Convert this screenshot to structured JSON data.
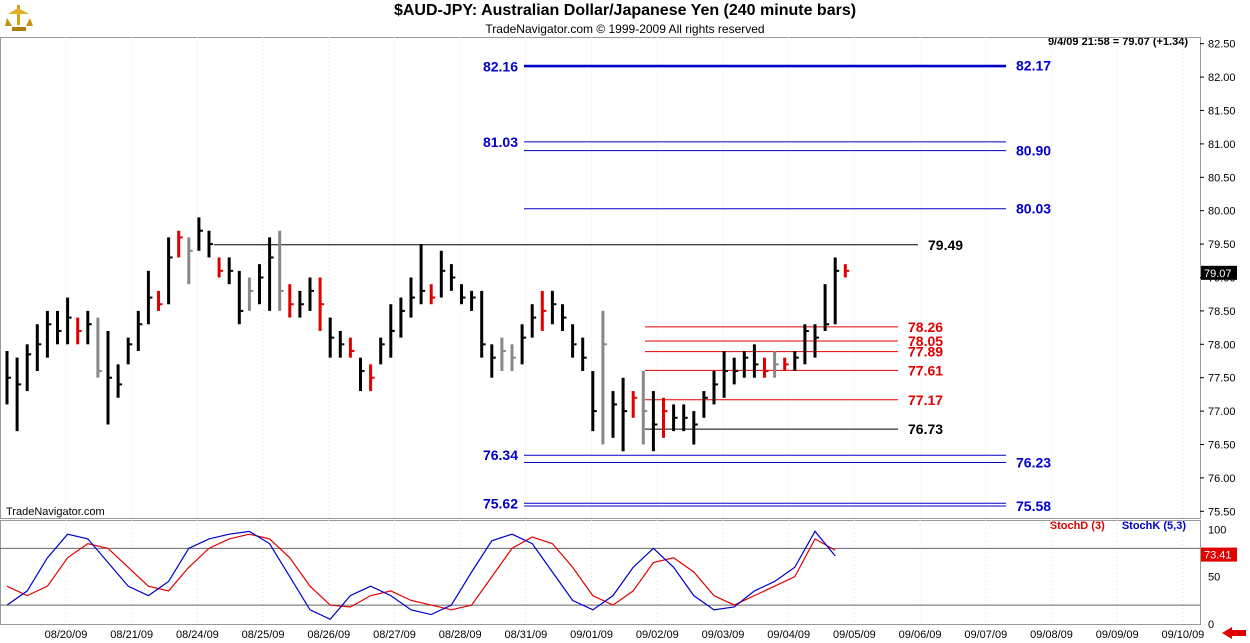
{
  "header": {
    "title": "$AUD-JPY:  Australian Dollar/Japanese Yen  (240 minute bars)",
    "subtitle": "TradeNavigator.com © 1999-2009 All rights reserved"
  },
  "readout": "9/4/09 21:58 = 79.07 (+1.34)",
  "watermark": "TradeNavigator.com",
  "colors": {
    "bull_bar": "#000000",
    "up_bar": "#888888",
    "down_bar": "#e00000",
    "level_blue": "#0000cc",
    "level_red": "#e00000",
    "stochD": "#e00000",
    "stochK": "#0000cc"
  },
  "chart_data": [
    {
      "type": "bar",
      "subtype": "ohlc",
      "title": "$AUD-JPY:  Australian Dollar/Japanese Yen  (240 minute bars)",
      "ylim": [
        75.4,
        82.6
      ],
      "yticks": [
        "75.50",
        "76.00",
        "76.50",
        "77.00",
        "77.50",
        "78.00",
        "78.50",
        "79.00",
        "79.50",
        "80.00",
        "80.50",
        "81.00",
        "81.50",
        "82.00",
        "82.50"
      ],
      "x_labels": [
        "08/20/09",
        "08/21/09",
        "08/24/09",
        "08/25/09",
        "08/26/09",
        "08/27/09",
        "08/28/09",
        "08/31/09",
        "09/01/09",
        "09/02/09",
        "09/03/09",
        "09/04/09",
        "09/05/09",
        "09/06/09",
        "09/07/09",
        "09/08/09",
        "09/09/09",
        "09/10/09"
      ],
      "last_price": "79.07",
      "bars": [
        [
          77.9,
          77.1,
          77.5,
          "k"
        ],
        [
          77.8,
          76.7,
          77.4,
          "k"
        ],
        [
          78.0,
          77.3,
          77.85,
          "k"
        ],
        [
          78.3,
          77.6,
          78.0,
          "k"
        ],
        [
          78.5,
          77.8,
          78.3,
          "k"
        ],
        [
          78.5,
          78.0,
          78.2,
          "k"
        ],
        [
          78.7,
          78.0,
          78.4,
          "k"
        ],
        [
          78.4,
          78.0,
          78.2,
          "r"
        ],
        [
          78.5,
          78.0,
          78.3,
          "k"
        ],
        [
          78.4,
          77.5,
          77.6,
          "g"
        ],
        [
          78.2,
          76.8,
          77.5,
          "k"
        ],
        [
          77.7,
          77.2,
          77.4,
          "k"
        ],
        [
          78.1,
          77.7,
          78.0,
          "k"
        ],
        [
          78.5,
          77.9,
          78.3,
          "k"
        ],
        [
          79.1,
          78.3,
          78.7,
          "k"
        ],
        [
          78.8,
          78.5,
          78.6,
          "r"
        ],
        [
          79.6,
          78.6,
          79.3,
          "k"
        ],
        [
          79.7,
          79.3,
          79.6,
          "r"
        ],
        [
          79.6,
          78.9,
          79.4,
          "g"
        ],
        [
          79.9,
          79.4,
          79.7,
          "k"
        ],
        [
          79.7,
          79.3,
          79.5,
          "k"
        ],
        [
          79.3,
          79.0,
          79.1,
          "r"
        ],
        [
          79.3,
          78.9,
          79.1,
          "k"
        ],
        [
          79.1,
          78.3,
          78.5,
          "k"
        ],
        [
          79.0,
          78.5,
          78.8,
          "g"
        ],
        [
          79.2,
          78.6,
          79.0,
          "k"
        ],
        [
          79.6,
          78.5,
          79.3,
          "k"
        ],
        [
          79.7,
          78.5,
          78.8,
          "g"
        ],
        [
          78.9,
          78.4,
          78.6,
          "r"
        ],
        [
          78.8,
          78.4,
          78.6,
          "k"
        ],
        [
          79.0,
          78.5,
          78.8,
          "k"
        ],
        [
          79.0,
          78.2,
          78.6,
          "r"
        ],
        [
          78.4,
          77.8,
          78.1,
          "k"
        ],
        [
          78.2,
          77.8,
          78.0,
          "k"
        ],
        [
          78.1,
          77.8,
          77.9,
          "r"
        ],
        [
          77.8,
          77.3,
          77.6,
          "k"
        ],
        [
          77.7,
          77.3,
          77.5,
          "r"
        ],
        [
          78.1,
          77.7,
          78.0,
          "k"
        ],
        [
          78.6,
          77.8,
          78.2,
          "k"
        ],
        [
          78.7,
          78.1,
          78.5,
          "k"
        ],
        [
          79.0,
          78.4,
          78.7,
          "k"
        ],
        [
          79.5,
          78.6,
          78.8,
          "k"
        ],
        [
          78.9,
          78.6,
          78.7,
          "r"
        ],
        [
          79.4,
          78.7,
          79.1,
          "k"
        ],
        [
          79.2,
          78.8,
          79.0,
          "k"
        ],
        [
          78.9,
          78.6,
          78.7,
          "k"
        ],
        [
          78.8,
          78.5,
          78.7,
          "k"
        ],
        [
          78.8,
          77.8,
          78.0,
          "k"
        ],
        [
          78.0,
          77.5,
          77.8,
          "k"
        ],
        [
          78.1,
          77.6,
          77.9,
          "g"
        ],
        [
          78.0,
          77.6,
          77.8,
          "g"
        ],
        [
          78.3,
          77.7,
          78.1,
          "k"
        ],
        [
          78.6,
          78.1,
          78.4,
          "k"
        ],
        [
          78.8,
          78.2,
          78.5,
          "r"
        ],
        [
          78.8,
          78.3,
          78.6,
          "k"
        ],
        [
          78.6,
          78.2,
          78.4,
          "k"
        ],
        [
          78.3,
          77.8,
          78.0,
          "k"
        ],
        [
          78.1,
          77.6,
          77.8,
          "k"
        ],
        [
          77.6,
          76.7,
          77.0,
          "k"
        ],
        [
          78.5,
          76.5,
          78.0,
          "g"
        ],
        [
          77.3,
          76.6,
          77.1,
          "k"
        ],
        [
          77.5,
          76.4,
          77.0,
          "k"
        ],
        [
          77.3,
          76.9,
          77.2,
          "r"
        ],
        [
          77.6,
          76.5,
          77.0,
          "g"
        ],
        [
          77.3,
          76.4,
          76.8,
          "k"
        ],
        [
          77.2,
          76.6,
          77.0,
          "r"
        ],
        [
          77.1,
          76.7,
          76.9,
          "k"
        ],
        [
          77.1,
          76.7,
          76.9,
          "k"
        ],
        [
          77.0,
          76.5,
          76.8,
          "k"
        ],
        [
          77.3,
          76.9,
          77.2,
          "k"
        ],
        [
          77.6,
          77.1,
          77.4,
          "k"
        ],
        [
          77.9,
          77.2,
          77.6,
          "k"
        ],
        [
          77.8,
          77.4,
          77.6,
          "k"
        ],
        [
          77.9,
          77.5,
          77.8,
          "k"
        ],
        [
          78.0,
          77.5,
          77.7,
          "k"
        ],
        [
          77.8,
          77.5,
          77.6,
          "r"
        ],
        [
          77.9,
          77.5,
          77.7,
          "g"
        ],
        [
          77.8,
          77.6,
          77.7,
          "r"
        ],
        [
          77.9,
          77.6,
          77.8,
          "k"
        ],
        [
          78.3,
          77.7,
          78.2,
          "k"
        ],
        [
          78.3,
          77.8,
          78.1,
          "k"
        ],
        [
          78.9,
          78.2,
          78.3,
          "k"
        ],
        [
          79.3,
          78.3,
          79.1,
          "k"
        ],
        [
          79.2,
          79.0,
          79.1,
          "r"
        ]
      ],
      "levels": [
        {
          "label": "82.16",
          "price": 82.16,
          "x1": 524,
          "x2": 1006,
          "color": "blue",
          "bold": true,
          "label_side": "left"
        },
        {
          "label": "82.17",
          "price": 82.17,
          "x1": 524,
          "x2": 1006,
          "color": "blue",
          "bold": true,
          "label_side": "right"
        },
        {
          "label": "81.03",
          "price": 81.03,
          "x1": 524,
          "x2": 1006,
          "color": "blue",
          "bold": false,
          "label_side": "left"
        },
        {
          "label": "80.90",
          "price": 80.9,
          "x1": 524,
          "x2": 1006,
          "color": "blue",
          "bold": false,
          "label_side": "right"
        },
        {
          "label": "80.03",
          "price": 80.03,
          "x1": 524,
          "x2": 1006,
          "color": "blue",
          "bold": false,
          "label_side": "right"
        },
        {
          "label": "79.49",
          "price": 79.49,
          "x1": 214,
          "x2": 918,
          "color": "black",
          "bold": false,
          "label_side": "end"
        },
        {
          "label": "78.26",
          "price": 78.26,
          "x1": 645,
          "x2": 898,
          "color": "red",
          "bold": false,
          "label_side": "end"
        },
        {
          "label": "78.05",
          "price": 78.05,
          "x1": 645,
          "x2": 898,
          "color": "red",
          "bold": false,
          "label_side": "end"
        },
        {
          "label": "77.89",
          "price": 77.89,
          "x1": 645,
          "x2": 898,
          "color": "red",
          "bold": false,
          "label_side": "end"
        },
        {
          "label": "77.61",
          "price": 77.61,
          "x1": 645,
          "x2": 898,
          "color": "red",
          "bold": false,
          "label_side": "end"
        },
        {
          "label": "77.17",
          "price": 77.17,
          "x1": 645,
          "x2": 898,
          "color": "red",
          "bold": false,
          "label_side": "end"
        },
        {
          "label": "76.73",
          "price": 76.73,
          "x1": 645,
          "x2": 898,
          "color": "black",
          "bold": false,
          "label_side": "end"
        },
        {
          "label": "76.34",
          "price": 76.34,
          "x1": 524,
          "x2": 1006,
          "color": "blue",
          "bold": false,
          "label_side": "left"
        },
        {
          "label": "76.23",
          "price": 76.23,
          "x1": 524,
          "x2": 1006,
          "color": "blue",
          "bold": false,
          "label_side": "right"
        },
        {
          "label": "75.62",
          "price": 75.62,
          "x1": 524,
          "x2": 1006,
          "color": "blue",
          "bold": false,
          "label_side": "left"
        },
        {
          "label": "75.58",
          "price": 75.58,
          "x1": 524,
          "x2": 1006,
          "color": "blue",
          "bold": false,
          "label_side": "right"
        }
      ]
    },
    {
      "type": "line",
      "ylim": [
        0,
        110
      ],
      "yticks": [
        "0",
        "50",
        "100"
      ],
      "reference_lines": [
        80,
        20
      ],
      "series_names": [
        "StochD (3)",
        "StochK (5,3)"
      ],
      "last_value": "73.41",
      "series": [
        {
          "name": "StochD (3)",
          "color": "red",
          "x": [
            0,
            2,
            4,
            6,
            8,
            10,
            12,
            14,
            16,
            18,
            20,
            22,
            24,
            26,
            28,
            30,
            32,
            34,
            36,
            38,
            40,
            42,
            44,
            46,
            48,
            50,
            52,
            54,
            56,
            58,
            60,
            62,
            64,
            66,
            68,
            70,
            72,
            74,
            76,
            78,
            80,
            82
          ],
          "values": [
            40,
            30,
            40,
            70,
            85,
            80,
            60,
            40,
            35,
            60,
            80,
            90,
            95,
            90,
            70,
            40,
            20,
            18,
            30,
            35,
            25,
            20,
            15,
            20,
            50,
            80,
            92,
            85,
            60,
            30,
            20,
            35,
            65,
            70,
            55,
            30,
            20,
            30,
            40,
            50,
            90,
            78
          ]
        },
        {
          "name": "StochK (5,3)",
          "color": "blue",
          "x": [
            0,
            2,
            4,
            6,
            8,
            10,
            12,
            14,
            16,
            18,
            20,
            22,
            24,
            26,
            28,
            30,
            32,
            34,
            36,
            38,
            40,
            42,
            44,
            46,
            48,
            50,
            52,
            54,
            56,
            58,
            60,
            62,
            64,
            66,
            68,
            70,
            72,
            74,
            76,
            78,
            80,
            82
          ],
          "values": [
            20,
            35,
            70,
            95,
            90,
            65,
            40,
            30,
            45,
            80,
            90,
            95,
            98,
            85,
            50,
            15,
            5,
            30,
            40,
            30,
            15,
            10,
            20,
            55,
            88,
            95,
            85,
            55,
            25,
            15,
            30,
            60,
            80,
            60,
            30,
            15,
            18,
            35,
            45,
            60,
            98,
            72
          ]
        }
      ]
    }
  ]
}
